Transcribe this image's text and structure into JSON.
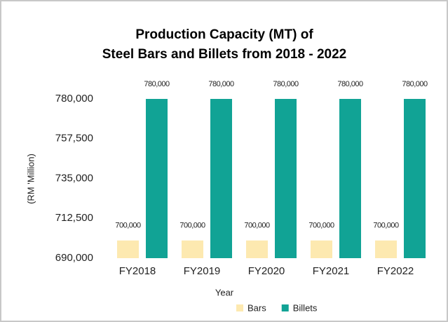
{
  "chart_data": {
    "type": "bar",
    "title": [
      "Production Capacity (MT) of",
      "Steel Bars and Billets from 2018 - 2022"
    ],
    "xlabel": "Year",
    "ylabel": "(RM 'Million)",
    "categories": [
      "FY2018",
      "FY2019",
      "FY2020",
      "FY2021",
      "FY2022"
    ],
    "series": [
      {
        "name": "Bars",
        "color": "#fde9b0",
        "values": [
          700000,
          700000,
          700000,
          700000,
          700000
        ],
        "value_labels": [
          "700,000",
          "700,000",
          "700,000",
          "700,000",
          "700,000"
        ]
      },
      {
        "name": "Billets",
        "color": "#11a395",
        "values": [
          780000,
          780000,
          780000,
          780000,
          780000
        ],
        "value_labels": [
          "780,000",
          "780,000",
          "780,000",
          "780,000",
          "780,000"
        ]
      }
    ],
    "ylim": [
      690000,
      780000
    ],
    "yticks": [
      {
        "value": 690000,
        "label": "690,000"
      },
      {
        "value": 712500,
        "label": "712,500"
      },
      {
        "value": 735000,
        "label": "735,000"
      },
      {
        "value": 757500,
        "label": "757,500"
      },
      {
        "value": 780000,
        "label": "780,000"
      }
    ],
    "legend": "bottom"
  }
}
